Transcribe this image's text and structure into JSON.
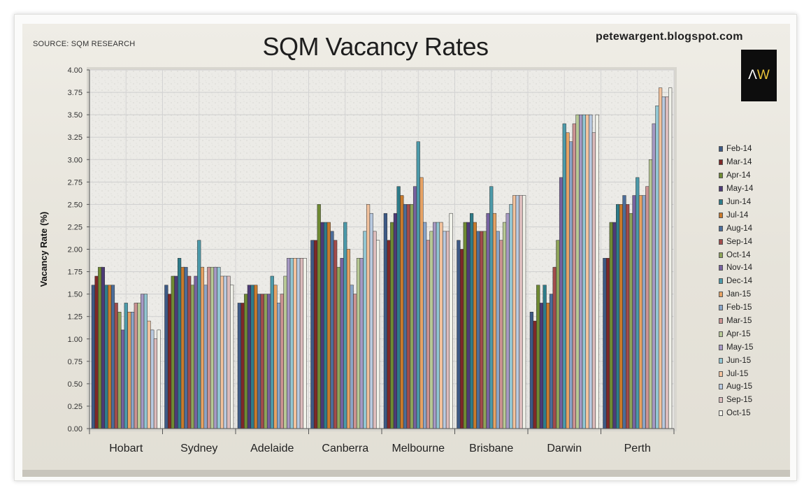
{
  "header": {
    "title": "SQM Vacancy Rates",
    "source": "SOURCE: SQM RESEARCH",
    "blog": "petewargent.blogspot.com",
    "logo_text_a": "Λ",
    "logo_text_w": "W"
  },
  "colors": [
    "#3d5a86",
    "#7e2828",
    "#6f8a33",
    "#4d3a77",
    "#2e7c8a",
    "#c97a2c",
    "#4b6d9a",
    "#a24c4c",
    "#8ea45a",
    "#7762a0",
    "#4c9aaa",
    "#e6a264",
    "#8aa5c8",
    "#cc9393",
    "#b7c895",
    "#a699c4",
    "#93c6d2",
    "#f2c29d",
    "#b9cae0",
    "#dcbcbc",
    "#f1f2ea"
  ],
  "chart_data": {
    "type": "bar",
    "title": "SQM Vacancy Rates",
    "ylabel": "Vacancy Rate (%)",
    "xlabel": "",
    "ylim": [
      0,
      4
    ],
    "yticks": [
      "0.00",
      "0.25",
      "0.50",
      "0.75",
      "1.00",
      "1.25",
      "1.50",
      "1.75",
      "2.00",
      "2.25",
      "2.50",
      "2.75",
      "3.00",
      "3.25",
      "3.50",
      "3.75",
      "4.00"
    ],
    "grid": true,
    "legend_position": "right",
    "categories": [
      "Hobart",
      "Sydney",
      "Adelaide",
      "Canberra",
      "Melbourne",
      "Brisbane",
      "Darwin",
      "Perth"
    ],
    "series": [
      {
        "name": "Feb-14",
        "values": [
          1.6,
          1.6,
          1.4,
          2.1,
          2.4,
          2.1,
          1.3,
          1.9
        ]
      },
      {
        "name": "Mar-14",
        "values": [
          1.7,
          1.5,
          1.4,
          2.1,
          2.1,
          2.0,
          1.2,
          1.9
        ]
      },
      {
        "name": "Apr-14",
        "values": [
          1.8,
          1.7,
          1.5,
          2.5,
          2.3,
          2.3,
          1.6,
          2.3
        ]
      },
      {
        "name": "May-14",
        "values": [
          1.8,
          1.7,
          1.6,
          2.3,
          2.4,
          2.3,
          1.4,
          2.3
        ]
      },
      {
        "name": "Jun-14",
        "values": [
          1.6,
          1.9,
          1.6,
          2.3,
          2.7,
          2.4,
          1.6,
          2.5
        ]
      },
      {
        "name": "Jul-14",
        "values": [
          1.6,
          1.8,
          1.6,
          2.3,
          2.6,
          2.3,
          1.4,
          2.5
        ]
      },
      {
        "name": "Aug-14",
        "values": [
          1.6,
          1.8,
          1.5,
          2.2,
          2.5,
          2.2,
          1.5,
          2.6
        ]
      },
      {
        "name": "Sep-14",
        "values": [
          1.4,
          1.7,
          1.5,
          2.1,
          2.5,
          2.2,
          1.8,
          2.5
        ]
      },
      {
        "name": "Oct-14",
        "values": [
          1.3,
          1.6,
          1.5,
          1.8,
          2.5,
          2.2,
          2.1,
          2.4
        ]
      },
      {
        "name": "Nov-14",
        "values": [
          1.1,
          1.7,
          1.5,
          1.9,
          2.7,
          2.4,
          2.8,
          2.6
        ]
      },
      {
        "name": "Dec-14",
        "values": [
          1.4,
          2.1,
          1.7,
          2.3,
          3.2,
          2.7,
          3.4,
          2.8
        ]
      },
      {
        "name": "Jan-15",
        "values": [
          1.3,
          1.8,
          1.6,
          2.0,
          2.8,
          2.4,
          3.3,
          2.6
        ]
      },
      {
        "name": "Feb-15",
        "values": [
          1.3,
          1.6,
          1.4,
          1.6,
          2.3,
          2.2,
          3.2,
          2.6
        ]
      },
      {
        "name": "Mar-15",
        "values": [
          1.4,
          1.8,
          1.5,
          1.5,
          2.1,
          2.1,
          3.4,
          2.7
        ]
      },
      {
        "name": "Apr-15",
        "values": [
          1.4,
          1.8,
          1.7,
          1.9,
          2.2,
          2.3,
          3.5,
          3.0
        ]
      },
      {
        "name": "May-15",
        "values": [
          1.5,
          1.8,
          1.9,
          1.9,
          2.3,
          2.4,
          3.5,
          3.4
        ]
      },
      {
        "name": "Jun-15",
        "values": [
          1.5,
          1.8,
          1.9,
          2.2,
          2.3,
          2.5,
          3.5,
          3.6
        ]
      },
      {
        "name": "Jul-15",
        "values": [
          1.2,
          1.7,
          1.9,
          2.5,
          2.3,
          2.6,
          3.5,
          3.8
        ]
      },
      {
        "name": "Aug-15",
        "values": [
          1.1,
          1.7,
          1.9,
          2.4,
          2.2,
          2.6,
          3.5,
          3.7
        ]
      },
      {
        "name": "Sep-15",
        "values": [
          1.0,
          1.7,
          1.9,
          2.2,
          2.2,
          2.6,
          3.3,
          3.7
        ]
      },
      {
        "name": "Oct-15",
        "values": [
          1.1,
          1.6,
          1.9,
          2.1,
          2.4,
          2.6,
          3.5,
          3.8
        ]
      }
    ]
  }
}
